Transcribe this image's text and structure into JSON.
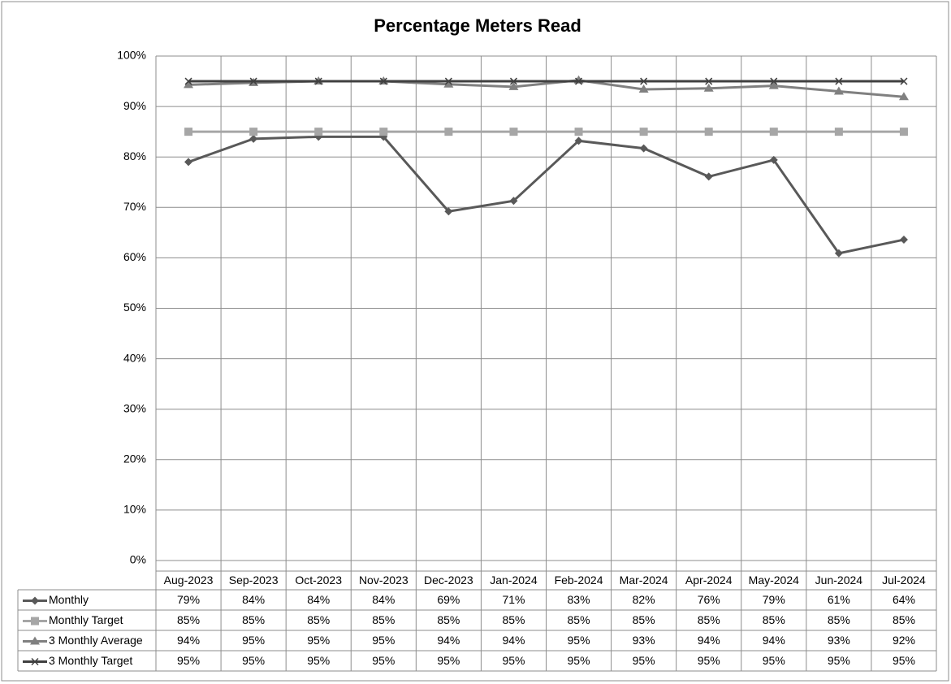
{
  "chart_data": {
    "type": "line",
    "title": "Percentage Meters Read",
    "categories": [
      "Aug-2023",
      "Sep-2023",
      "Oct-2023",
      "Nov-2023",
      "Dec-2023",
      "Jan-2024",
      "Feb-2024",
      "Mar-2024",
      "Apr-2024",
      "May-2024",
      "Jun-2024",
      "Jul-2024"
    ],
    "ylim": [
      0,
      100
    ],
    "yticks": [
      {
        "value": 0,
        "label": "0%"
      },
      {
        "value": 10,
        "label": "10%"
      },
      {
        "value": 20,
        "label": "20%"
      },
      {
        "value": 30,
        "label": "30%"
      },
      {
        "value": 40,
        "label": "40%"
      },
      {
        "value": 50,
        "label": "50%"
      },
      {
        "value": 60,
        "label": "60%"
      },
      {
        "value": 70,
        "label": "70%"
      },
      {
        "value": 80,
        "label": "80%"
      },
      {
        "value": 90,
        "label": "90%"
      },
      {
        "value": 100,
        "label": "100%"
      }
    ],
    "grid": true,
    "series": [
      {
        "name": "Monthly",
        "color": "#595959",
        "marker": "diamond",
        "values": [
          79,
          83.6,
          84,
          84,
          69.2,
          71.3,
          83.2,
          81.7,
          76.1,
          79.4,
          60.9,
          63.6
        ],
        "value_labels": [
          "79%",
          "84%",
          "84%",
          "84%",
          "69%",
          "71%",
          "83%",
          "82%",
          "76%",
          "79%",
          "61%",
          "64%"
        ]
      },
      {
        "name": "Monthly Target",
        "color": "#a6a6a6",
        "marker": "square",
        "values": [
          85,
          85,
          85,
          85,
          85,
          85,
          85,
          85,
          85,
          85,
          85,
          85
        ],
        "value_labels": [
          "85%",
          "85%",
          "85%",
          "85%",
          "85%",
          "85%",
          "85%",
          "85%",
          "85%",
          "85%",
          "85%",
          "85%"
        ]
      },
      {
        "name": "3 Monthly Average",
        "color": "#808080",
        "marker": "triangle",
        "values": [
          94.3,
          94.7,
          95,
          95,
          94.4,
          93.9,
          95.2,
          93.4,
          93.6,
          94.1,
          93,
          91.9
        ],
        "value_labels": [
          "94%",
          "95%",
          "95%",
          "95%",
          "94%",
          "94%",
          "95%",
          "93%",
          "94%",
          "94%",
          "93%",
          "92%"
        ]
      },
      {
        "name": "3 Monthly Target",
        "color": "#404040",
        "marker": "x",
        "values": [
          95,
          95,
          95,
          95,
          95,
          95,
          95,
          95,
          95,
          95,
          95,
          95
        ],
        "value_labels": [
          "95%",
          "95%",
          "95%",
          "95%",
          "95%",
          "95%",
          "95%",
          "95%",
          "95%",
          "95%",
          "95%",
          "95%"
        ]
      }
    ]
  }
}
